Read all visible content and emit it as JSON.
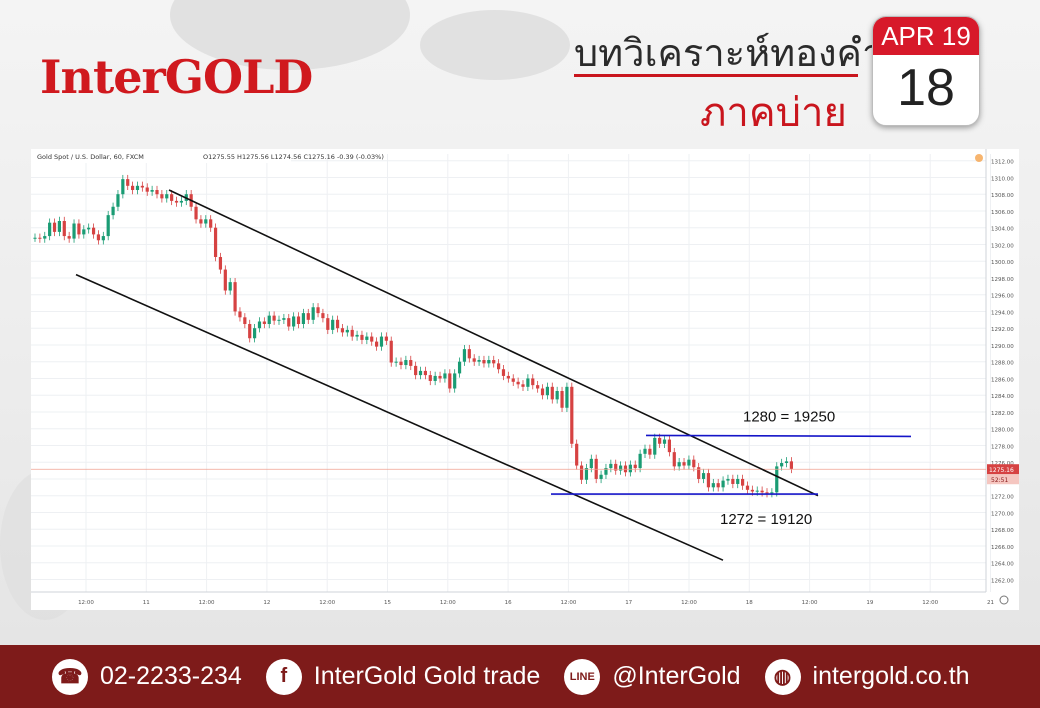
{
  "brand": "InterGOLD",
  "header": {
    "title": "บทวิเคราะห์ทองคำ",
    "subtitle": "ภาคบ่าย",
    "calendar_month": "APR 19",
    "calendar_day": "18"
  },
  "chart_info": {
    "symbol_line": "Gold Spot / U.S. Dollar, 60, FXCM",
    "ohlc": "O1275.55 H1275.56 L1274.56 C1275.16 -0.39 (-0.03%)",
    "last_price_label": "1275.16",
    "countdown_label": "52:51"
  },
  "chart_data": {
    "type": "candlestick",
    "x_ticks": [
      "12:00",
      "11",
      "12:00",
      "12",
      "12:00",
      "15",
      "12:00",
      "16",
      "12:00",
      "17",
      "12:00",
      "18",
      "12:00",
      "19",
      "12:00",
      "21"
    ],
    "y_ticks": [
      "1312.00",
      "1310.00",
      "1308.00",
      "1306.00",
      "1304.00",
      "1302.00",
      "1300.00",
      "1298.00",
      "1296.00",
      "1294.00",
      "1292.00",
      "1290.00",
      "1288.00",
      "1286.00",
      "1284.00",
      "1282.00",
      "1280.00",
      "1278.00",
      "1276.00",
      "1274.00",
      "1272.00",
      "1270.00",
      "1268.00",
      "1266.00",
      "1264.00",
      "1262.00"
    ],
    "ylim": [
      1260.5,
      1312.8
    ],
    "close_path": [
      1302.8,
      1302.7,
      1303.0,
      1304.6,
      1303.5,
      1304.8,
      1303.0,
      1302.7,
      1304.5,
      1303.2,
      1303.8,
      1304.0,
      1303.2,
      1302.5,
      1303.0,
      1305.5,
      1306.5,
      1308.0,
      1309.8,
      1309.0,
      1308.5,
      1309.0,
      1308.8,
      1308.3,
      1308.5,
      1308.0,
      1307.5,
      1308.0,
      1307.2,
      1307.0,
      1307.2,
      1308.0,
      1306.5,
      1305.0,
      1304.5,
      1305.0,
      1304.0,
      1300.5,
      1299.0,
      1296.5,
      1297.5,
      1294.0,
      1293.3,
      1292.5,
      1290.8,
      1292.0,
      1292.8,
      1292.5,
      1293.5,
      1292.9,
      1293.0,
      1293.2,
      1292.2,
      1293.4,
      1292.5,
      1293.8,
      1293.0,
      1294.5,
      1293.8,
      1293.2,
      1291.8,
      1293.0,
      1292.0,
      1291.5,
      1291.8,
      1291.0,
      1291.2,
      1290.6,
      1291.0,
      1290.4,
      1289.8,
      1291.0,
      1290.5,
      1287.9,
      1288.0,
      1287.6,
      1288.2,
      1287.5,
      1286.4,
      1286.9,
      1286.4,
      1285.7,
      1286.3,
      1286.0,
      1286.6,
      1284.8,
      1286.6,
      1288.0,
      1289.5,
      1288.4,
      1288.0,
      1288.2,
      1287.8,
      1288.2,
      1287.8,
      1287.1,
      1286.3,
      1286.0,
      1285.6,
      1285.3,
      1285.0,
      1286.0,
      1285.2,
      1284.8,
      1284.0,
      1285.0,
      1283.5,
      1284.5,
      1282.5,
      1285.0,
      1278.2,
      1275.6,
      1273.9,
      1275.3,
      1276.4,
      1274.0,
      1274.5,
      1275.3,
      1275.8,
      1275.0,
      1275.6,
      1274.8,
      1275.7,
      1275.3,
      1277.0,
      1277.6,
      1276.9,
      1278.9,
      1278.2,
      1278.7,
      1277.2,
      1275.5,
      1276.0,
      1275.6,
      1276.3,
      1275.4,
      1274.0,
      1274.7,
      1273.0,
      1273.5,
      1273.0,
      1273.8,
      1274.0,
      1273.4,
      1274.0,
      1273.2,
      1272.7,
      1272.5,
      1272.6,
      1272.4,
      1272.3,
      1272.4,
      1275.5,
      1275.9,
      1276.1,
      1275.2
    ],
    "channel_upper": [
      [
        1308.5,
        1272.0
      ]
    ],
    "channel_lower": [
      [
        1298.4,
        1264.3
      ]
    ],
    "horizontal_levels": [
      {
        "price": 1279.2,
        "label": "1280 = 19250"
      },
      {
        "price": 1272.2,
        "label": "1272 = 19120"
      }
    ],
    "last_price": 1275.16,
    "grid": true
  },
  "footer": {
    "phone": "02-2233-234",
    "facebook": "InterGold Gold trade",
    "line": "@InterGold",
    "website": "intergold.co.th",
    "colors": {
      "bar": "#7e1b1a",
      "accent": "#d0191e"
    }
  }
}
